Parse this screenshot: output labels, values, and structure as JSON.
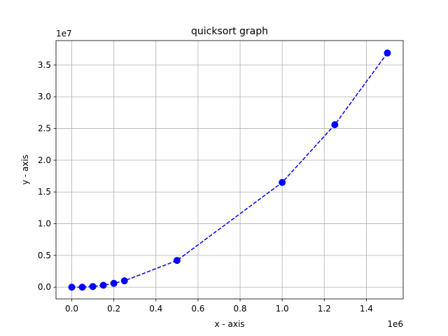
{
  "chart_data": {
    "type": "line",
    "title": "quicksort graph",
    "xlabel": "x - axis",
    "ylabel": "y - axis",
    "x_offset_label": "1e6",
    "y_offset_label": "1e7",
    "xlim": [
      -0.075,
      1.575
    ],
    "ylim": [
      -0.185,
      3.885
    ],
    "x_ticks": [
      0.0,
      0.2,
      0.4,
      0.6,
      0.8,
      1.0,
      1.2,
      1.4
    ],
    "x_tick_labels": [
      "0.0",
      "0.2",
      "0.4",
      "0.6",
      "0.8",
      "1.0",
      "1.2",
      "1.4"
    ],
    "y_ticks": [
      0.0,
      0.5,
      1.0,
      1.5,
      2.0,
      2.5,
      3.0,
      3.5
    ],
    "y_tick_labels": [
      "0.0",
      "0.5",
      "1.0",
      "1.5",
      "2.0",
      "2.5",
      "3.0",
      "3.5"
    ],
    "grid": true,
    "series": [
      {
        "color": "#0000ff",
        "line_style": "dashed",
        "marker": "circle",
        "x": [
          0.0,
          0.05,
          0.1,
          0.15,
          0.2,
          0.25,
          0.5,
          1.0,
          1.25,
          1.5
        ],
        "y": [
          0.0,
          0.0,
          0.01,
          0.03,
          0.06,
          0.1,
          0.42,
          1.65,
          2.56,
          3.69
        ]
      }
    ]
  }
}
